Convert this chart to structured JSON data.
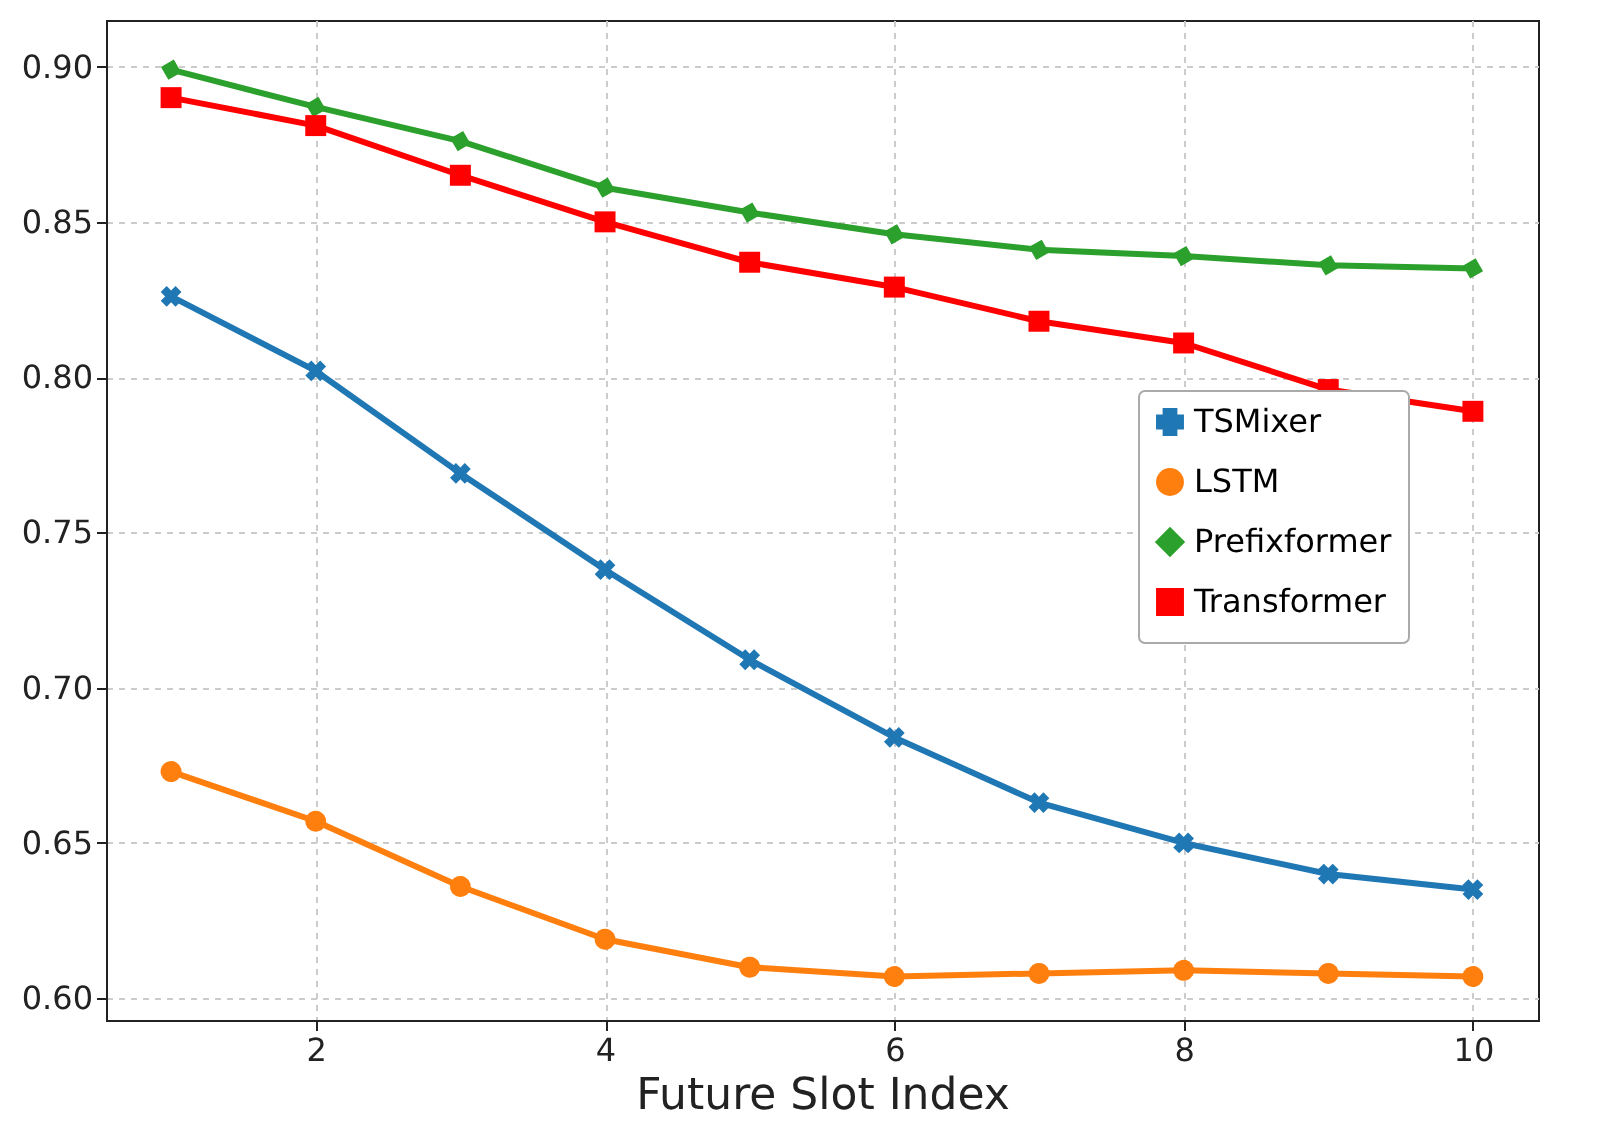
{
  "chart_data": {
    "type": "line",
    "xlabel": "Future Slot Index",
    "x": [
      1,
      2,
      3,
      4,
      5,
      6,
      7,
      8,
      9,
      10
    ],
    "series": [
      {
        "name": "TSMixer",
        "color": "#1f77b4",
        "marker": "cross",
        "values": [
          0.826,
          0.802,
          0.769,
          0.738,
          0.709,
          0.684,
          0.663,
          0.65,
          0.64,
          0.635
        ]
      },
      {
        "name": "LSTM",
        "color": "#ff7f0e",
        "marker": "circle",
        "values": [
          0.673,
          0.657,
          0.636,
          0.619,
          0.61,
          0.607,
          0.608,
          0.609,
          0.608,
          0.607
        ]
      },
      {
        "name": "Prefixformer",
        "color": "#2ca02c",
        "marker": "diamond",
        "values": [
          0.899,
          0.887,
          0.876,
          0.861,
          0.853,
          0.846,
          0.841,
          0.839,
          0.836,
          0.835
        ]
      },
      {
        "name": "Transformer",
        "color": "#ff0000",
        "marker": "square",
        "values": [
          0.89,
          0.881,
          0.865,
          0.85,
          0.837,
          0.829,
          0.818,
          0.811,
          0.796,
          0.789
        ]
      }
    ],
    "xlim": [
      0.55,
      10.45
    ],
    "xticks": [
      2,
      4,
      6,
      8,
      10
    ],
    "ylim": [
      0.593,
      0.915
    ],
    "yticks": [
      {
        "value": 0.6,
        "label": "0.60"
      },
      0.65,
      {
        "value": 0.7,
        "label": "0.70"
      },
      0.75,
      {
        "value": 0.8,
        "label": "0.80"
      },
      0.85,
      {
        "value": 0.9,
        "label": "0.90"
      }
    ],
    "grid": true,
    "legend": "right",
    "line_style": "solid"
  }
}
